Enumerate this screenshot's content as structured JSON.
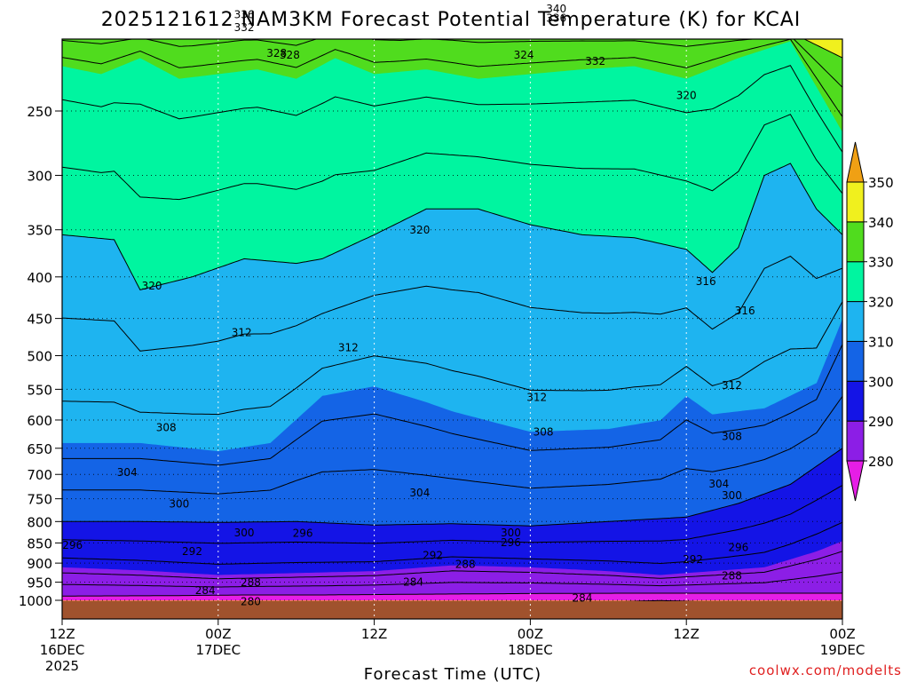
{
  "chart_data": {
    "type": "filled-contour",
    "title": "2025121612 NAM3KM Forecast Potential Temperature (K) for KCAI",
    "xlabel": "Forecast Time (UTC)",
    "x_ticks": [
      {
        "line1": "12Z",
        "line2": "16DEC",
        "line3": "2025"
      },
      {
        "line1": "00Z",
        "line2": "17DEC",
        "line3": ""
      },
      {
        "line1": "12Z",
        "line2": "",
        "line3": ""
      },
      {
        "line1": "00Z",
        "line2": "18DEC",
        "line3": ""
      },
      {
        "line1": "12Z",
        "line2": "",
        "line3": ""
      },
      {
        "line1": "00Z",
        "line2": "19DEC",
        "line3": ""
      }
    ],
    "x_hours": [
      0,
      12,
      24,
      36,
      48,
      60
    ],
    "y_ticks": [
      250,
      300,
      350,
      400,
      450,
      500,
      550,
      600,
      650,
      700,
      750,
      800,
      850,
      900,
      950,
      1000
    ],
    "y_axis": "pressure (hPa), log scale, decreasing upward",
    "colorbar": {
      "levels": [
        280,
        290,
        300,
        310,
        320,
        330,
        340,
        350
      ],
      "colors": [
        "#e61ee6",
        "#8c1ee6",
        "#1414e6",
        "#1464e6",
        "#1eb4f0",
        "#00f5a0",
        "#50dc1e",
        "#f0f01e",
        "#f0a014"
      ],
      "extend": "both"
    },
    "contour_interval_K": 4,
    "ground_color": "#a0522d",
    "contour_labels": [
      "336",
      "332",
      "328",
      "340",
      "336",
      "332",
      "328",
      "324",
      "320",
      "320",
      "320",
      "316",
      "316",
      "312",
      "312",
      "312",
      "312",
      "308",
      "308",
      "308",
      "304",
      "304",
      "304",
      "300",
      "300",
      "300",
      "300",
      "296",
      "296",
      "296",
      "296",
      "292",
      "292",
      "292",
      "288",
      "288",
      "288",
      "284",
      "284",
      "284",
      "280"
    ],
    "credit": "coolwx.com/modelts"
  }
}
